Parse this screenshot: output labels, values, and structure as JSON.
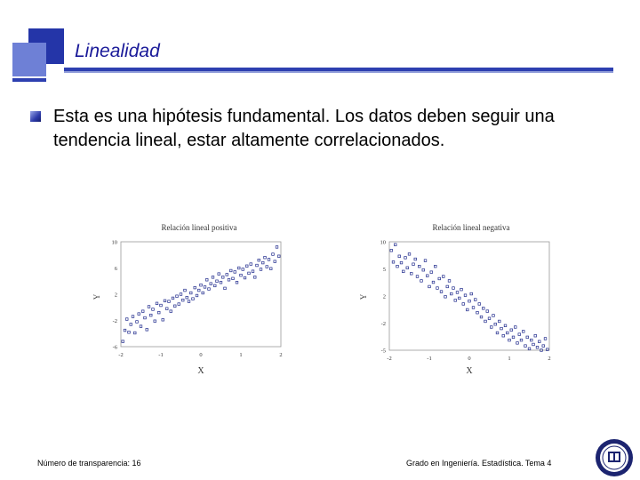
{
  "slide": {
    "title": "Linealidad",
    "body": "Esta es una hipótesis fundamental. Los datos deben seguir una tendencia lineal, estar altamente correlacionados.",
    "footer_left": "Número de transparencia: 16",
    "footer_right": "Grado en Ingeniería. Estadística. Tema 4",
    "accent_color": "#2d3fb0",
    "marker_color": "#1f2a8c"
  },
  "chart_data": [
    {
      "type": "scatter",
      "title": "Relación lineal positiva",
      "xlabel": "X",
      "ylabel": "Y",
      "xlim": [
        -2,
        2
      ],
      "ylim": [
        -6,
        10
      ],
      "xticks": [
        "-2",
        "-1",
        "0",
        "1",
        "2"
      ],
      "yticks": [
        "-6",
        "-2",
        "2",
        "6",
        "10"
      ],
      "points": [
        [
          -1.95,
          -5.2
        ],
        [
          -1.9,
          -3.5
        ],
        [
          -1.85,
          -1.8
        ],
        [
          -1.8,
          -3.8
        ],
        [
          -1.75,
          -2.6
        ],
        [
          -1.7,
          -1.4
        ],
        [
          -1.65,
          -3.9
        ],
        [
          -1.6,
          -2.2
        ],
        [
          -1.55,
          -1.0
        ],
        [
          -1.5,
          -2.9
        ],
        [
          -1.45,
          -0.6
        ],
        [
          -1.4,
          -1.6
        ],
        [
          -1.35,
          -3.4
        ],
        [
          -1.3,
          0.1
        ],
        [
          -1.25,
          -1.2
        ],
        [
          -1.2,
          -0.3
        ],
        [
          -1.15,
          -2.1
        ],
        [
          -1.1,
          0.6
        ],
        [
          -1.05,
          -0.8
        ],
        [
          -1.0,
          0.3
        ],
        [
          -0.95,
          -1.9
        ],
        [
          -0.9,
          1.0
        ],
        [
          -0.85,
          -0.2
        ],
        [
          -0.8,
          0.9
        ],
        [
          -0.75,
          -0.6
        ],
        [
          -0.7,
          1.4
        ],
        [
          -0.65,
          0.2
        ],
        [
          -0.6,
          1.7
        ],
        [
          -0.55,
          0.5
        ],
        [
          -0.5,
          2.0
        ],
        [
          -0.45,
          1.1
        ],
        [
          -0.4,
          2.6
        ],
        [
          -0.35,
          1.5
        ],
        [
          -0.3,
          0.9
        ],
        [
          -0.25,
          2.2
        ],
        [
          -0.2,
          1.3
        ],
        [
          -0.15,
          3.0
        ],
        [
          -0.1,
          1.8
        ],
        [
          -0.05,
          2.6
        ],
        [
          0.0,
          3.4
        ],
        [
          0.05,
          2.2
        ],
        [
          0.1,
          3.1
        ],
        [
          0.15,
          4.2
        ],
        [
          0.2,
          2.8
        ],
        [
          0.25,
          3.6
        ],
        [
          0.3,
          4.6
        ],
        [
          0.35,
          3.3
        ],
        [
          0.4,
          4.0
        ],
        [
          0.45,
          5.1
        ],
        [
          0.5,
          3.8
        ],
        [
          0.55,
          4.6
        ],
        [
          0.6,
          2.9
        ],
        [
          0.65,
          5.0
        ],
        [
          0.7,
          4.2
        ],
        [
          0.75,
          5.6
        ],
        [
          0.8,
          4.4
        ],
        [
          0.85,
          5.4
        ],
        [
          0.9,
          3.8
        ],
        [
          0.95,
          6.0
        ],
        [
          1.0,
          4.9
        ],
        [
          1.05,
          5.8
        ],
        [
          1.1,
          4.5
        ],
        [
          1.15,
          6.3
        ],
        [
          1.2,
          5.2
        ],
        [
          1.25,
          6.6
        ],
        [
          1.3,
          5.5
        ],
        [
          1.35,
          4.6
        ],
        [
          1.4,
          6.4
        ],
        [
          1.45,
          7.2
        ],
        [
          1.5,
          5.8
        ],
        [
          1.55,
          6.8
        ],
        [
          1.6,
          7.6
        ],
        [
          1.65,
          6.2
        ],
        [
          1.7,
          7.3
        ],
        [
          1.75,
          5.9
        ],
        [
          1.8,
          8.1
        ],
        [
          1.85,
          7.0
        ],
        [
          1.9,
          9.2
        ],
        [
          1.95,
          7.8
        ]
      ]
    },
    {
      "type": "scatter",
      "title": "Relación lineal negativa",
      "xlabel": "X",
      "ylabel": "Y",
      "xlim": [
        -2,
        2
      ],
      "ylim": [
        -5,
        10
      ],
      "xticks": [
        "-2",
        "-1",
        "0",
        "1",
        "2"
      ],
      "yticks": [
        "-5",
        "-2",
        "2",
        "5",
        "10"
      ],
      "points": [
        [
          -1.95,
          8.8
        ],
        [
          -1.9,
          7.2
        ],
        [
          -1.85,
          9.6
        ],
        [
          -1.8,
          6.6
        ],
        [
          -1.75,
          8.0
        ],
        [
          -1.7,
          7.1
        ],
        [
          -1.65,
          5.9
        ],
        [
          -1.6,
          7.8
        ],
        [
          -1.55,
          6.4
        ],
        [
          -1.5,
          8.3
        ],
        [
          -1.45,
          5.6
        ],
        [
          -1.4,
          6.9
        ],
        [
          -1.35,
          7.6
        ],
        [
          -1.3,
          5.2
        ],
        [
          -1.25,
          6.6
        ],
        [
          -1.2,
          4.6
        ],
        [
          -1.15,
          6.1
        ],
        [
          -1.1,
          7.4
        ],
        [
          -1.05,
          5.3
        ],
        [
          -1.0,
          3.8
        ],
        [
          -0.95,
          5.8
        ],
        [
          -0.9,
          4.4
        ],
        [
          -0.85,
          6.6
        ],
        [
          -0.8,
          3.6
        ],
        [
          -0.75,
          4.9
        ],
        [
          -0.7,
          3.1
        ],
        [
          -0.65,
          5.2
        ],
        [
          -0.6,
          2.4
        ],
        [
          -0.55,
          3.8
        ],
        [
          -0.5,
          4.6
        ],
        [
          -0.45,
          2.8
        ],
        [
          -0.4,
          3.6
        ],
        [
          -0.35,
          1.9
        ],
        [
          -0.3,
          3.0
        ],
        [
          -0.25,
          2.2
        ],
        [
          -0.2,
          3.4
        ],
        [
          -0.15,
          1.4
        ],
        [
          -0.1,
          2.6
        ],
        [
          -0.05,
          0.6
        ],
        [
          0.0,
          1.8
        ],
        [
          0.05,
          2.8
        ],
        [
          0.1,
          0.9
        ],
        [
          0.15,
          2.0
        ],
        [
          0.2,
          0.2
        ],
        [
          0.25,
          1.4
        ],
        [
          0.3,
          -0.4
        ],
        [
          0.35,
          0.8
        ],
        [
          0.4,
          -1.0
        ],
        [
          0.45,
          0.4
        ],
        [
          0.5,
          -0.6
        ],
        [
          0.55,
          -1.8
        ],
        [
          0.6,
          -0.2
        ],
        [
          0.65,
          -1.4
        ],
        [
          0.7,
          -2.6
        ],
        [
          0.75,
          -1.0
        ],
        [
          0.8,
          -2.0
        ],
        [
          0.85,
          -3.0
        ],
        [
          0.9,
          -1.6
        ],
        [
          0.95,
          -2.6
        ],
        [
          1.0,
          -3.6
        ],
        [
          1.05,
          -2.2
        ],
        [
          1.1,
          -3.2
        ],
        [
          1.15,
          -1.8
        ],
        [
          1.2,
          -4.0
        ],
        [
          1.25,
          -2.8
        ],
        [
          1.3,
          -3.6
        ],
        [
          1.35,
          -2.4
        ],
        [
          1.4,
          -4.4
        ],
        [
          1.45,
          -3.2
        ],
        [
          1.5,
          -4.8
        ],
        [
          1.55,
          -3.6
        ],
        [
          1.6,
          -4.2
        ],
        [
          1.65,
          -3.0
        ],
        [
          1.7,
          -4.6
        ],
        [
          1.75,
          -3.8
        ],
        [
          1.8,
          -5.0
        ],
        [
          1.85,
          -4.4
        ],
        [
          1.9,
          -3.4
        ],
        [
          1.95,
          -4.9
        ]
      ]
    }
  ]
}
